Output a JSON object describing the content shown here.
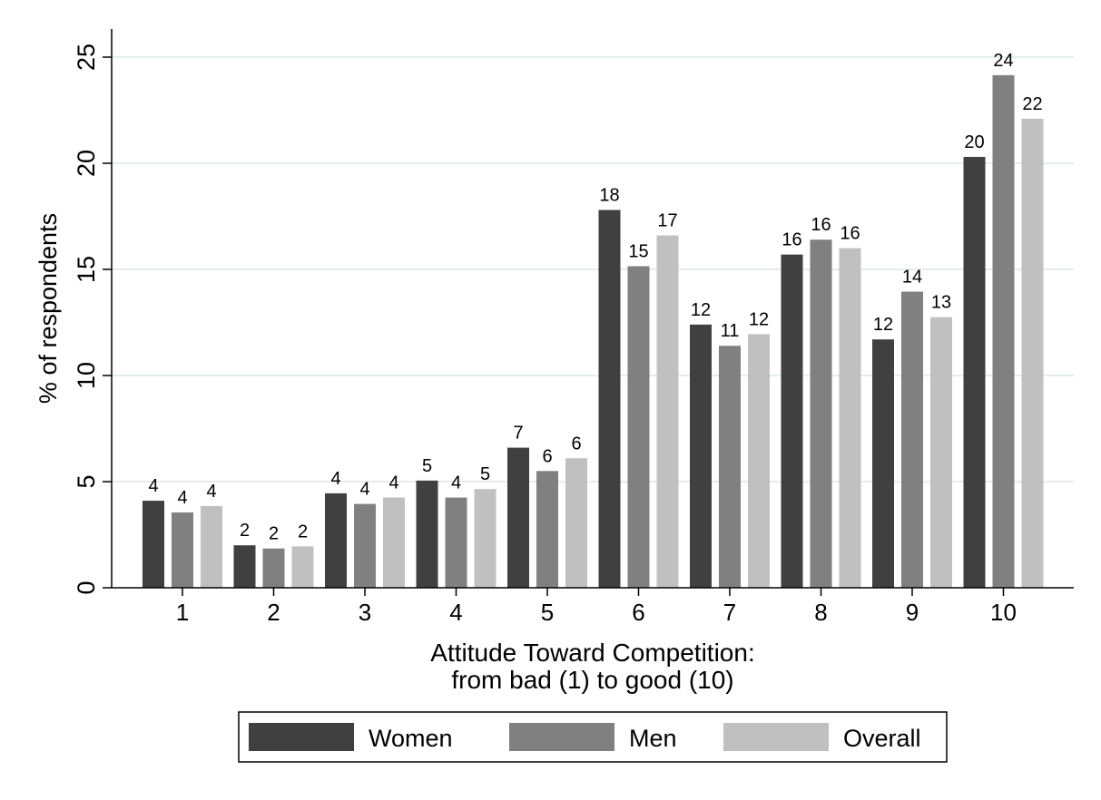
{
  "chart_data": {
    "type": "bar",
    "title": "",
    "xlabel": [
      "Attitude Toward Competition:",
      "from bad (1) to good (10)"
    ],
    "ylabel": "% of respondents",
    "ylim": [
      0,
      26
    ],
    "yticks": [
      0,
      5,
      10,
      15,
      20,
      25
    ],
    "grid": true,
    "legend_position": "bottom",
    "categories": [
      "1",
      "2",
      "3",
      "4",
      "5",
      "6",
      "7",
      "8",
      "9",
      "10"
    ],
    "series": [
      {
        "name": "Women",
        "color": "#404040",
        "values": [
          4.1,
          2.0,
          4.45,
          5.05,
          6.6,
          17.8,
          12.4,
          15.7,
          11.7,
          20.3
        ],
        "labels": [
          "4",
          "2",
          "4",
          "5",
          "7",
          "18",
          "12",
          "16",
          "12",
          "20"
        ]
      },
      {
        "name": "Men",
        "color": "#808080",
        "values": [
          3.55,
          1.85,
          3.95,
          4.25,
          5.5,
          15.15,
          11.4,
          16.4,
          13.95,
          24.15
        ],
        "labels": [
          "4",
          "2",
          "4",
          "4",
          "6",
          "15",
          "11",
          "16",
          "14",
          "24"
        ]
      },
      {
        "name": "Overall",
        "color": "#c0c0c0",
        "values": [
          3.85,
          1.95,
          4.25,
          4.65,
          6.1,
          16.6,
          11.95,
          16.0,
          12.75,
          22.1
        ],
        "labels": [
          "4",
          "2",
          "4",
          "5",
          "6",
          "17",
          "12",
          "16",
          "13",
          "22"
        ]
      }
    ]
  }
}
